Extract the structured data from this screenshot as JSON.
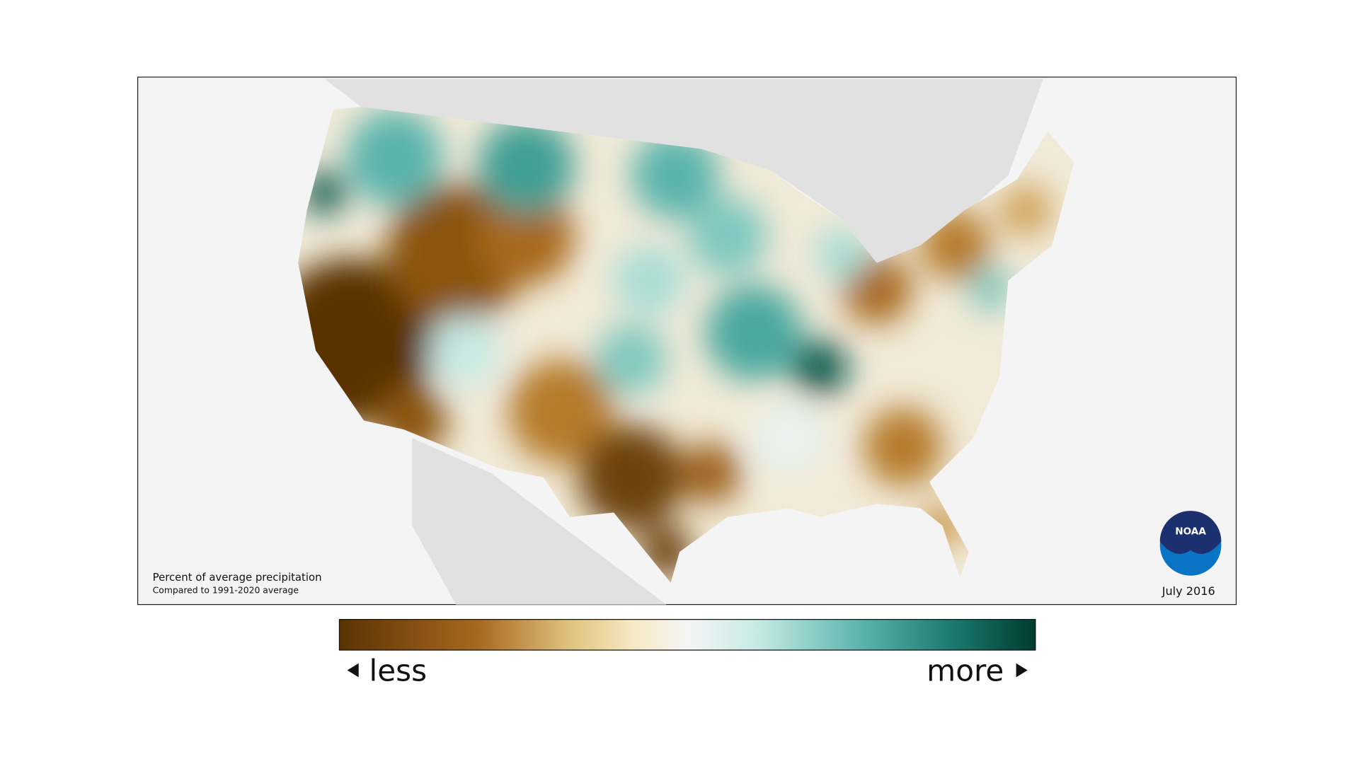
{
  "map": {
    "caption_title": "Percent of average precipitation",
    "caption_subtitle": "Compared to 1991-2020 average",
    "date": "July 2016"
  },
  "logo": {
    "text": "NOAA"
  },
  "legend": {
    "low_label": "less",
    "high_label": "more"
  }
}
